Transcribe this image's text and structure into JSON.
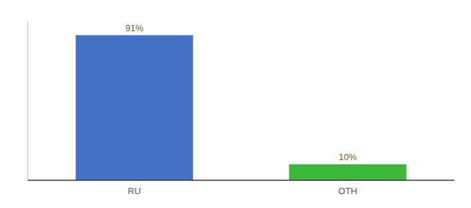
{
  "chart_data": {
    "type": "bar",
    "categories": [
      "RU",
      "OTH"
    ],
    "values": [
      91,
      10
    ],
    "value_labels": [
      "91%",
      "10%"
    ],
    "colors": [
      "#4472c4",
      "#3cb73c"
    ],
    "ylim": [
      0,
      100
    ],
    "data_labels": true,
    "tick_labels": "x",
    "grid": false
  }
}
